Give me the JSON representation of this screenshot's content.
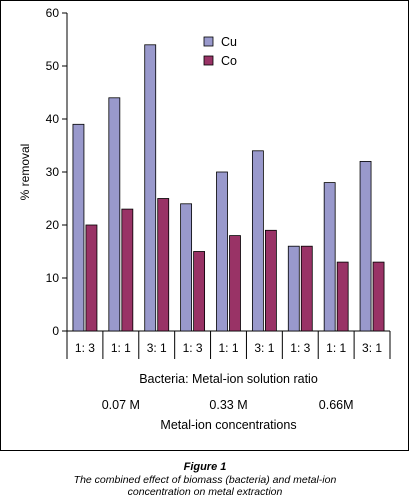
{
  "chart_data": {
    "type": "bar",
    "categories": [
      "1: 3",
      "1: 1",
      "3: 1",
      "1: 3",
      "1: 1",
      "3: 1",
      "1: 3",
      "1: 1",
      "3: 1"
    ],
    "series": [
      {
        "name": "Cu",
        "values": [
          39,
          44,
          54,
          24,
          30,
          34,
          16,
          28,
          32
        ],
        "color": "#9999cc"
      },
      {
        "name": "Co",
        "values": [
          20,
          23,
          25,
          15,
          18,
          19,
          16,
          13,
          13
        ],
        "color": "#993366"
      }
    ],
    "ylabel": "% removal",
    "xlabel": "Bacteria: Metal-ion solution ratio",
    "ylim": [
      0,
      60
    ],
    "yticks": [
      0,
      10,
      20,
      30,
      40,
      50,
      60
    ],
    "group_labels": [
      "0.07 M",
      "0.33 M",
      "0.66M"
    ],
    "group_axis_label": "Metal-ion concentrations",
    "legend_position": "top-center",
    "grid": false
  },
  "caption": {
    "title": "Figure 1",
    "line1": "The combined effect of biomass (bacteria) and metal-ion",
    "line2": "concentration on metal extraction"
  }
}
